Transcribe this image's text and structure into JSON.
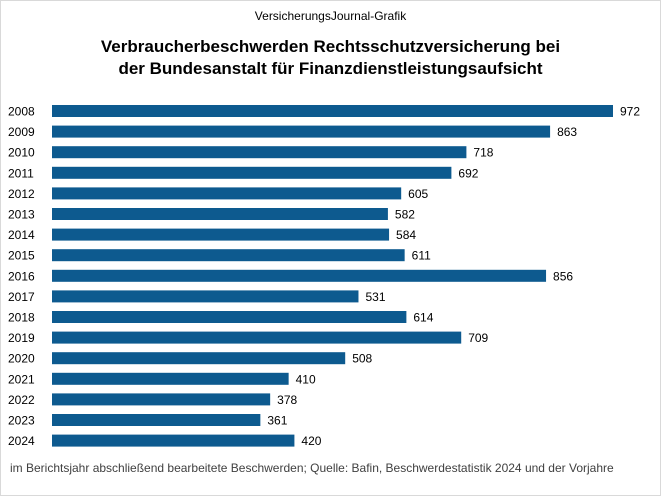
{
  "header": {
    "source_title": "VersicherungsJournal-Grafik",
    "title_line1": "Verbraucherbeschwerden Rechtsschutzversicherung bei",
    "title_line2": "der Bundesanstalt für Finanzdienstleistungsaufsicht"
  },
  "footnote": "im Berichtsjahr abschließend bearbeitete Beschwerden; Quelle: Bafin, Beschwerdestatistik 2024 und der Vorjahre",
  "chart_data": {
    "type": "bar",
    "orientation": "horizontal",
    "bar_color": "#0d5a8f",
    "grid": false,
    "categories": [
      "2008",
      "2009",
      "2010",
      "2011",
      "2012",
      "2013",
      "2014",
      "2015",
      "2016",
      "2017",
      "2018",
      "2019",
      "2020",
      "2021",
      "2022",
      "2023",
      "2024"
    ],
    "values": [
      972,
      863,
      718,
      692,
      605,
      582,
      584,
      611,
      856,
      531,
      614,
      709,
      508,
      410,
      378,
      361,
      420
    ],
    "xlim": [
      0,
      1000
    ]
  }
}
